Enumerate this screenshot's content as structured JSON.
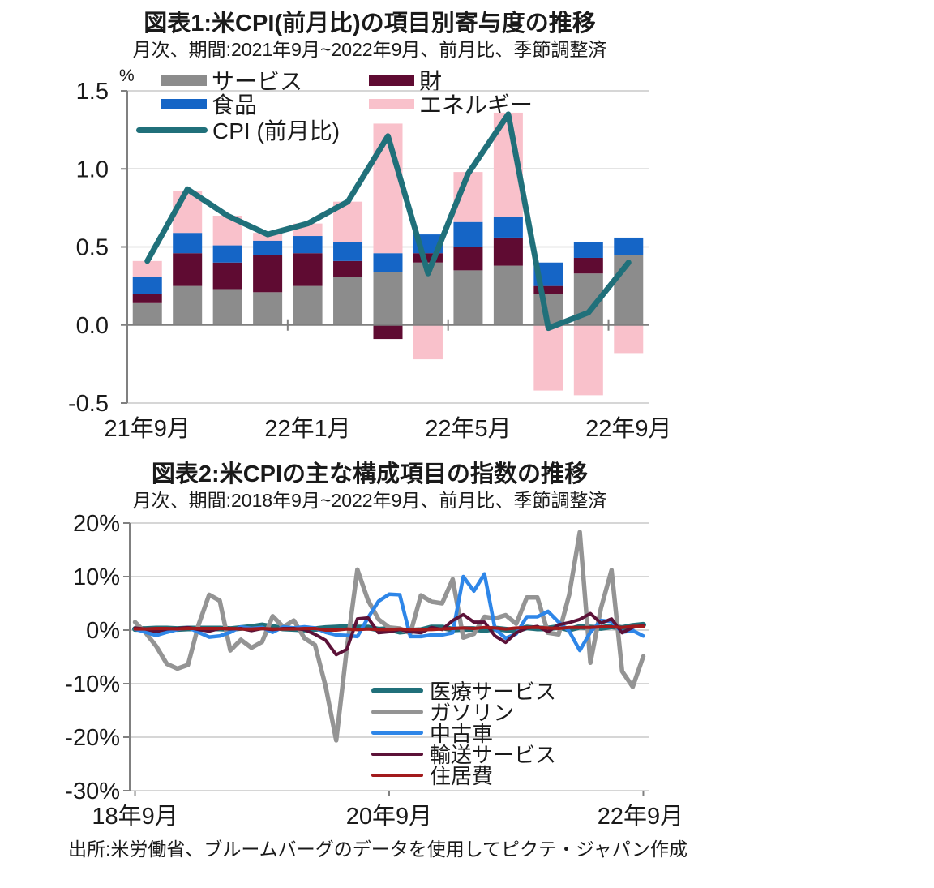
{
  "source": "出所:米労働省、ブルームバーグのデータを使用してピクテ・ジャパン作成",
  "chart1": {
    "title": "図表1:米CPI(前月比)の項目別寄与度の推移",
    "subtitle": "月次、期間:2021年9月~2022年9月、前月比、季節調整済",
    "unit_label": "%",
    "legend": [
      {
        "label": "サービス",
        "color": "#8C8C8C"
      },
      {
        "label": "財",
        "color": "#5F0B32"
      },
      {
        "label": "食品",
        "color": "#1565C6"
      },
      {
        "label": "エネルギー",
        "color": "#F9C1CB"
      },
      {
        "label": "CPI (前月比)",
        "color": "#20707A"
      }
    ],
    "chart_data": {
      "type": "bar",
      "subtype": "stacked-bar-with-line",
      "categories": [
        "21年9月",
        "21年10月",
        "21年11月",
        "21年12月",
        "22年1月",
        "22年2月",
        "22年3月",
        "22年4月",
        "22年5月",
        "22年6月",
        "22年7月",
        "22年8月",
        "22年9月"
      ],
      "series": [
        {
          "name": "サービス",
          "color": "#8C8C8C",
          "values": [
            0.14,
            0.25,
            0.23,
            0.21,
            0.25,
            0.31,
            0.34,
            0.4,
            0.35,
            0.38,
            0.2,
            0.33,
            0.45
          ]
        },
        {
          "name": "財",
          "color": "#5F0B32",
          "values": [
            0.06,
            0.21,
            0.17,
            0.24,
            0.21,
            0.1,
            -0.09,
            0.06,
            0.15,
            0.18,
            0.05,
            0.1,
            0.0
          ]
        },
        {
          "name": "食品",
          "color": "#1565C6",
          "values": [
            0.11,
            0.13,
            0.11,
            0.09,
            0.11,
            0.12,
            0.12,
            0.12,
            0.16,
            0.13,
            0.15,
            0.1,
            0.11
          ]
        },
        {
          "name": "エネルギー",
          "color": "#F9C1CB",
          "values": [
            0.1,
            0.27,
            0.19,
            0.05,
            0.08,
            0.26,
            0.83,
            -0.22,
            0.32,
            0.67,
            -0.42,
            -0.45,
            -0.18
          ]
        }
      ],
      "line": {
        "name": "CPI (前月比)",
        "color": "#20707A",
        "values": [
          0.41,
          0.87,
          0.7,
          0.58,
          0.65,
          0.79,
          1.21,
          0.33,
          0.97,
          1.35,
          -0.02,
          0.08,
          0.4
        ]
      },
      "ylim": [
        -0.5,
        1.5
      ],
      "y_ticks": [
        {
          "label": "1.5",
          "value": 1.5
        },
        {
          "label": "1.0",
          "value": 1.0
        },
        {
          "label": "0.5",
          "value": 0.5
        },
        {
          "label": "0.0",
          "value": 0.0
        },
        {
          "label": "-0.5",
          "value": -0.5
        }
      ],
      "x_tick_labels": [
        {
          "label": "21年9月",
          "index": 0
        },
        {
          "label": "22年1月",
          "index": 4
        },
        {
          "label": "22年5月",
          "index": 8
        },
        {
          "label": "22年9月",
          "index": 12
        }
      ],
      "grid": true,
      "legend_position": "top"
    }
  },
  "chart2": {
    "title": "図表2:米CPIの主な構成項目の指数の推移",
    "subtitle": "月次、期間:2018年9月~2022年9月、前月比、季節調整済",
    "legend": [
      {
        "label": "医療サービス",
        "color": "#20707A"
      },
      {
        "label": "ガソリン",
        "color": "#949494"
      },
      {
        "label": "中古車",
        "color": "#2E86E8"
      },
      {
        "label": "輸送サービス",
        "color": "#5C1238"
      },
      {
        "label": "住居費",
        "color": "#A21A1C"
      }
    ],
    "chart_data": {
      "type": "line",
      "x_period": "2018年9月~2022年9月 (monthly, 49 points)",
      "series": [
        {
          "name": "医療サービス",
          "color": "#20707A",
          "weight": 7,
          "values": [
            0.2,
            0.2,
            0.3,
            0.3,
            0.2,
            0.3,
            0.3,
            0.3,
            0.3,
            0.2,
            0.4,
            0.6,
            0.9,
            0.6,
            0.3,
            0.2,
            0.1,
            0.2,
            0.4,
            0.5,
            0.6,
            0.5,
            0.5,
            0.1,
            0.2,
            -0.3,
            -0.1,
            0.0,
            0.5,
            0.5,
            0.1,
            0.2,
            0.2,
            0.0,
            0.3,
            0.1,
            -0.1,
            0.5,
            0.3,
            0.3,
            0.6,
            0.1,
            0.6,
            0.5,
            0.4,
            0.7,
            0.4,
            0.8,
            1.0
          ]
        },
        {
          "name": "ガソリン",
          "color": "#949494",
          "weight": 5.5,
          "values": [
            1.5,
            -0.5,
            -3.0,
            -6.3,
            -7.2,
            -6.5,
            1.0,
            6.6,
            5.5,
            -3.8,
            -1.8,
            -3.3,
            -2.2,
            2.6,
            0.6,
            1.8,
            -1.5,
            -2.8,
            -10.5,
            -20.6,
            -3.5,
            11.3,
            5.6,
            2.0,
            0.5,
            0.3,
            -0.6,
            6.5,
            5.3,
            5.0,
            9.5,
            -1.4,
            -0.7,
            2.5,
            2.2,
            2.8,
            1.2,
            6.1,
            6.1,
            -0.5,
            -0.8,
            6.6,
            18.3,
            -6.1,
            4.1,
            11.2,
            -7.7,
            -10.6,
            -4.9
          ]
        },
        {
          "name": "中古車",
          "color": "#2E86E8",
          "weight": 4.5,
          "values": [
            0.2,
            -0.4,
            -1.0,
            -0.4,
            0.1,
            0.5,
            -0.4,
            -1.3,
            -1.1,
            -0.4,
            0.6,
            0.3,
            0.5,
            -0.4,
            0.6,
            0.4,
            0.6,
            0.4,
            -0.4,
            -0.9,
            -1.0,
            -1.2,
            2.3,
            5.4,
            6.7,
            6.6,
            -1.2,
            -1.2,
            -0.9,
            -0.9,
            -0.5,
            10.0,
            7.3,
            10.5,
            0.2,
            -1.5,
            -0.7,
            2.5,
            2.5,
            3.5,
            1.5,
            -0.2,
            -3.8,
            -0.4,
            1.8,
            1.6,
            -0.4,
            -0.1,
            -1.1
          ]
        },
        {
          "name": "輸送サービス",
          "color": "#5C1238",
          "weight": 4,
          "values": [
            0.4,
            0.2,
            -0.3,
            0.2,
            0.3,
            0.5,
            0.1,
            -0.2,
            0.3,
            0.2,
            0.3,
            -0.1,
            0.3,
            0.1,
            0.3,
            0.3,
            0.1,
            -0.8,
            -1.9,
            -4.6,
            -3.6,
            2.1,
            2.3,
            -0.5,
            -0.3,
            0.1,
            -0.3,
            -0.5,
            0.5,
            0.1,
            1.8,
            2.9,
            1.5,
            1.5,
            -1.1,
            -2.3,
            -0.5,
            0.4,
            0.7,
            -0.3,
            1.0,
            1.4,
            2.0,
            3.1,
            1.3,
            2.1,
            -0.5,
            0.5,
            0.9
          ]
        },
        {
          "name": "住居費",
          "color": "#A21A1C",
          "weight": 4,
          "values": [
            0.2,
            0.2,
            0.3,
            0.3,
            0.2,
            0.3,
            0.3,
            0.3,
            0.3,
            0.3,
            0.2,
            0.2,
            0.3,
            0.2,
            0.2,
            0.2,
            0.3,
            0.3,
            0.0,
            0.0,
            0.2,
            0.1,
            0.2,
            0.1,
            0.1,
            0.2,
            0.1,
            0.1,
            0.1,
            0.2,
            0.3,
            0.4,
            0.3,
            0.5,
            0.4,
            0.2,
            0.4,
            0.5,
            0.5,
            0.4,
            0.3,
            0.5,
            0.5,
            0.5,
            0.6,
            0.6,
            0.5,
            0.7,
            0.7
          ]
        }
      ],
      "ylim": [
        -30,
        20
      ],
      "y_ticks": [
        {
          "label": "20%",
          "value": 20
        },
        {
          "label": "10%",
          "value": 10
        },
        {
          "label": "0%",
          "value": 0
        },
        {
          "label": "-10%",
          "value": -10
        },
        {
          "label": "-20%",
          "value": -20
        },
        {
          "label": "-30%",
          "value": -30
        }
      ],
      "x_tick_labels": [
        {
          "label": "18年9月",
          "index": 0
        },
        {
          "label": "20年9月",
          "index": 24
        },
        {
          "label": "22年9月",
          "index": 48
        }
      ],
      "grid": true,
      "legend_position": "inside-bottom-center"
    }
  },
  "style_colors": {
    "grid": "#C9C9C9",
    "axis": "#808080",
    "zero_axis": "#7F7F7F",
    "text": "#1A1A1A",
    "background": "#FFFFFF"
  }
}
